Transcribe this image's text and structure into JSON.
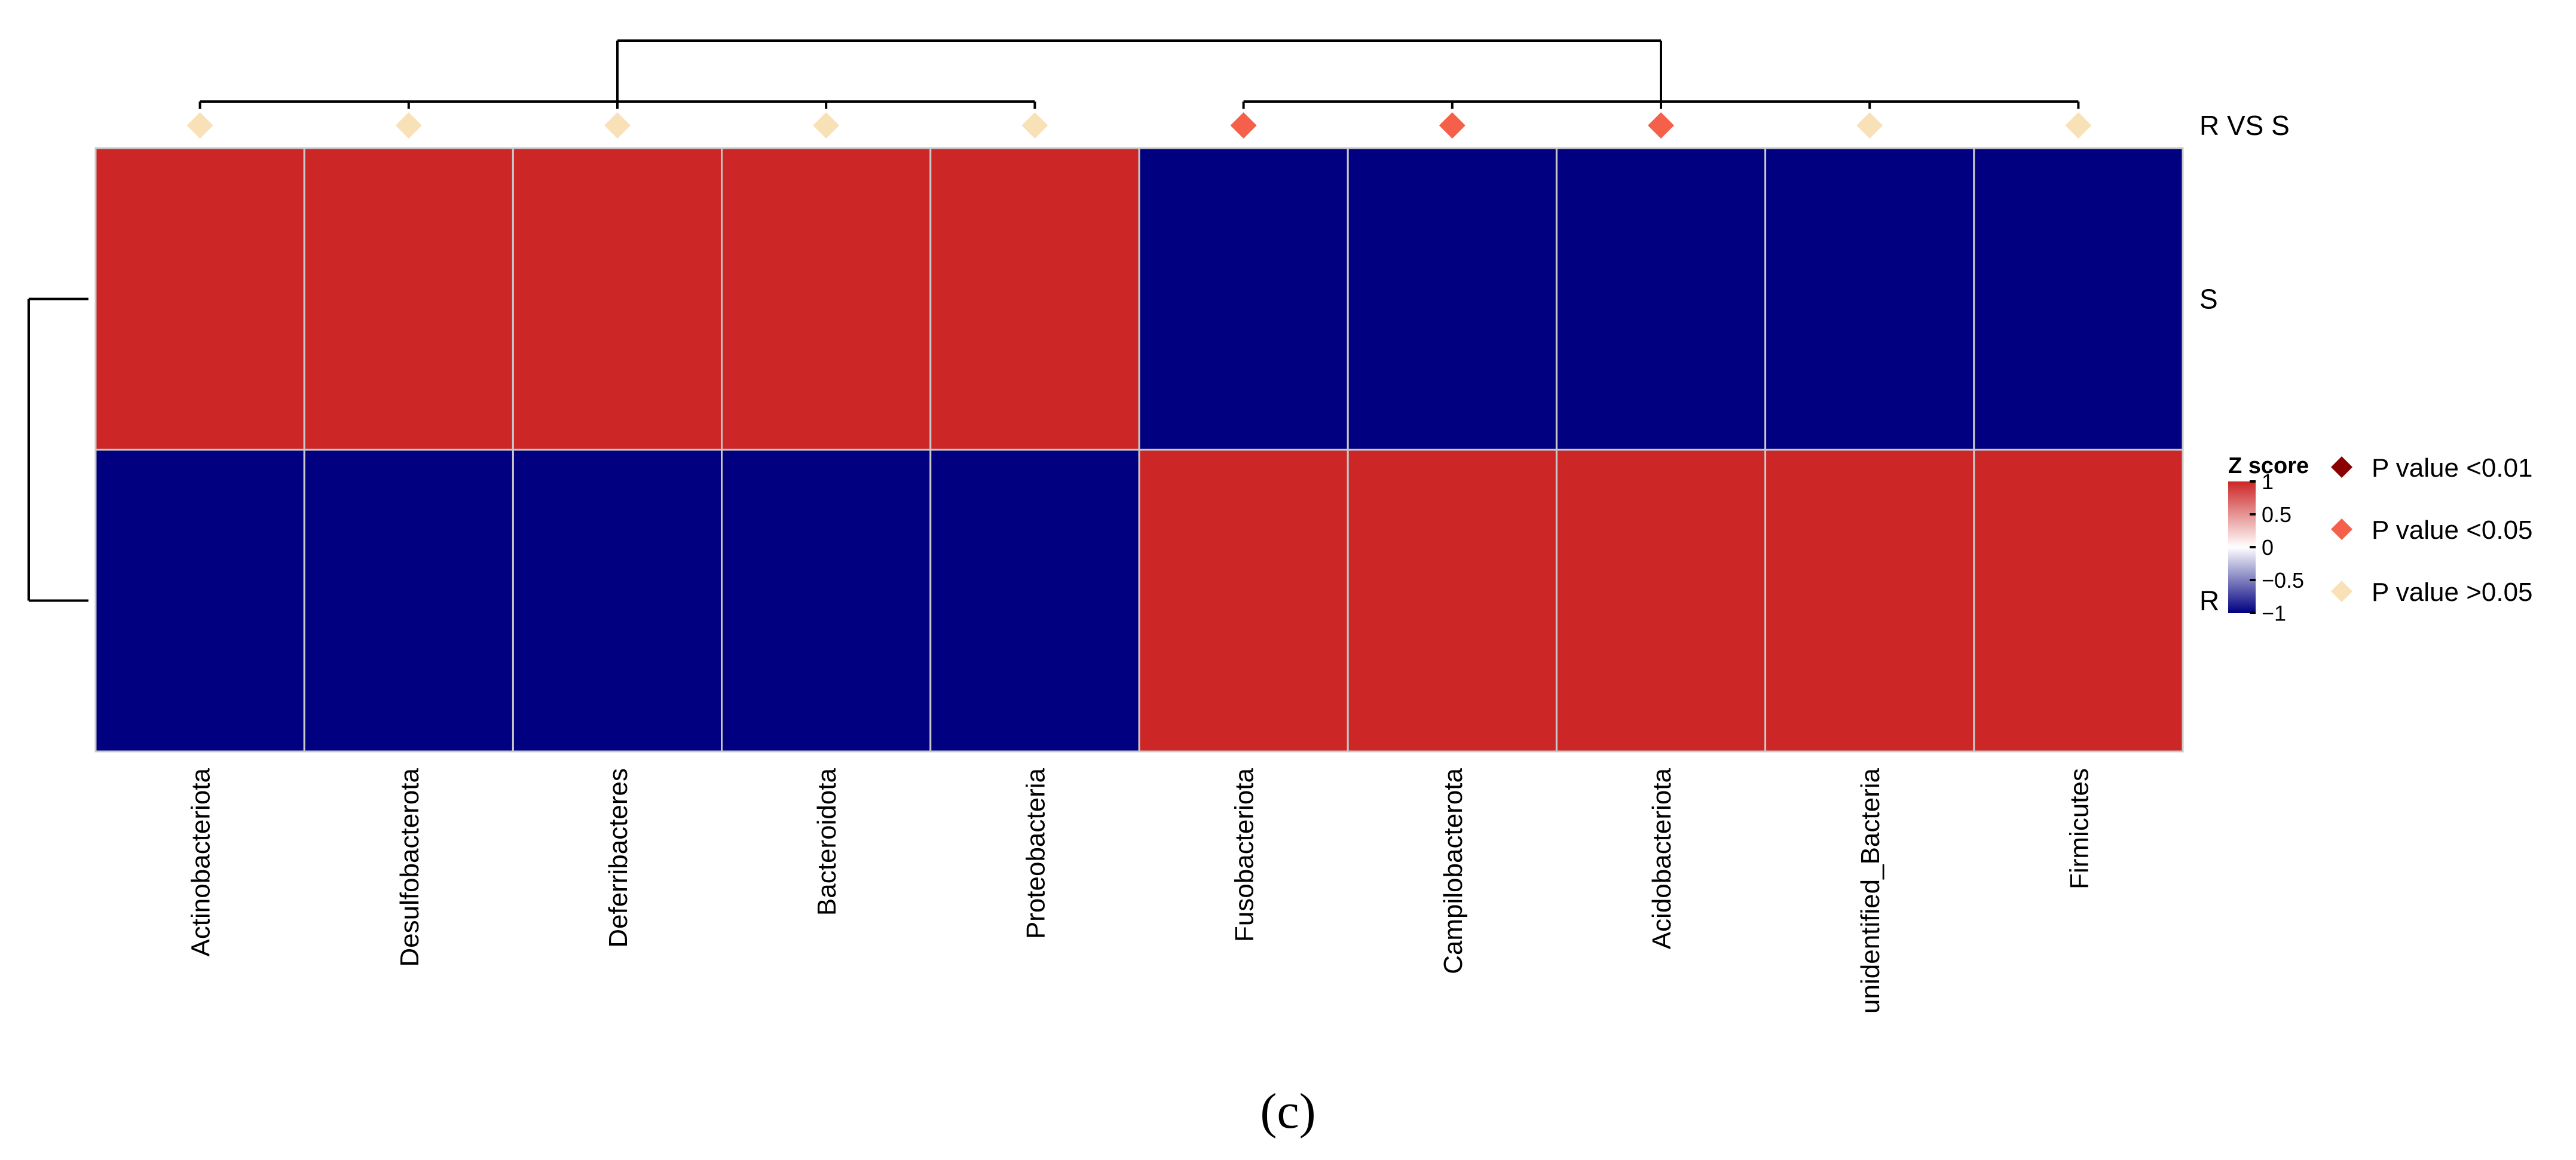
{
  "chart_data": {
    "type": "heatmap",
    "columns": [
      "Actinobacteriota",
      "Desulfobacterota",
      "Deferribacteres",
      "Bacteroidota",
      "Proteobacteria",
      "Fusobacteriota",
      "Campilobacterota",
      "Acidobacteriota",
      "unidentified_Bacteria",
      "Firmicutes"
    ],
    "rows": [
      "S",
      "R"
    ],
    "values": [
      [
        1,
        1,
        1,
        1,
        1,
        -1,
        -1,
        -1,
        -1,
        -1
      ],
      [
        -1,
        -1,
        -1,
        -1,
        -1,
        1,
        1,
        1,
        1,
        1
      ]
    ],
    "annotation": {
      "label": "R VS S",
      "significance": [
        "P value >0.05",
        "P value >0.05",
        "P value >0.05",
        "P value >0.05",
        "P value >0.05",
        "P value <0.05",
        "P value <0.05",
        "P value <0.05",
        "P value >0.05",
        "P value >0.05"
      ]
    },
    "column_dendrogram": {
      "clusters": [
        [
          "Actinobacteriota",
          "Desulfobacterota",
          "Deferribacteres",
          "Bacteroidota",
          "Proteobacteria"
        ],
        [
          "Fusobacteriota",
          "Campilobacterota",
          "Acidobacteriota",
          "unidentified_Bacteria",
          "Firmicutes"
        ]
      ]
    },
    "row_dendrogram": {
      "clusters": [
        [
          "S"
        ],
        [
          "R"
        ]
      ]
    },
    "color_scale": {
      "title": "Z score",
      "range": [
        -1,
        1
      ],
      "ticks": [
        1,
        0.5,
        0,
        -0.5,
        -1
      ],
      "tick_labels": [
        "1",
        "0.5",
        "0",
        "−0.5",
        "−1"
      ],
      "colors": {
        "low": "#000080",
        "mid": "#ffffff",
        "high": "#cc2626"
      }
    },
    "legend": [
      {
        "label": "P value <0.01",
        "color": "#8b0000"
      },
      {
        "label": "P value <0.05",
        "color": "#f4604a"
      },
      {
        "label": "P value >0.05",
        "color": "#f9e1b7"
      }
    ]
  },
  "caption": "(c)"
}
